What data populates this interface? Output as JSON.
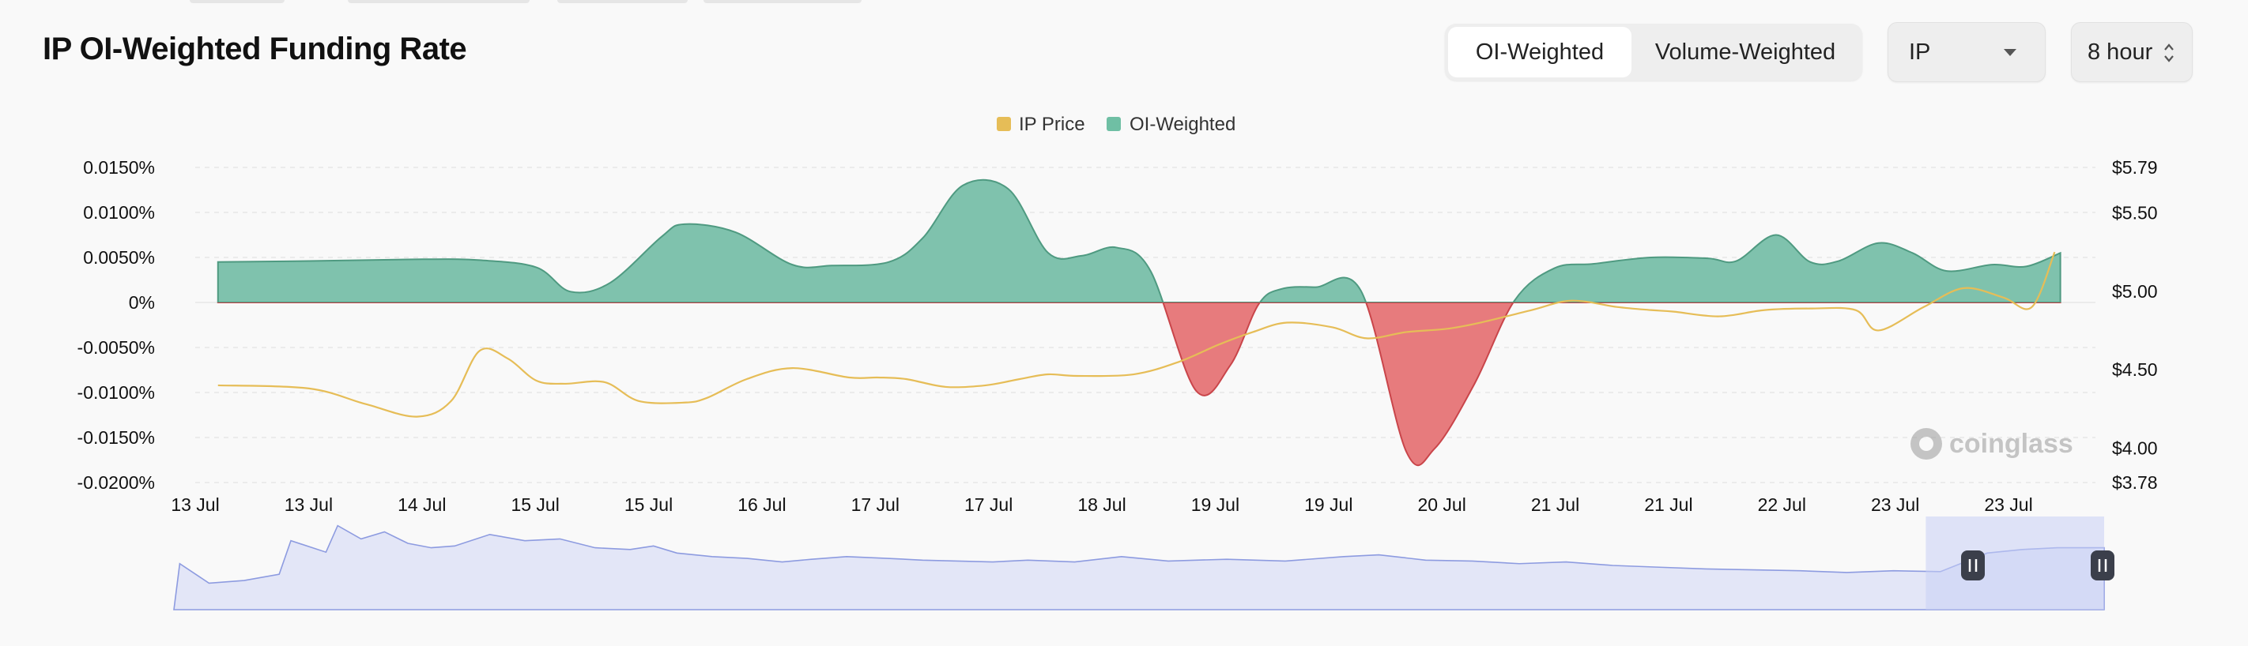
{
  "title": "IP OI-Weighted Funding Rate",
  "toggle": {
    "options": [
      "OI-Weighted",
      "Volume-Weighted"
    ],
    "selected": "OI-Weighted"
  },
  "coin_select": {
    "value": "IP",
    "icon": "chevron-down-icon"
  },
  "interval_select": {
    "value": "8 hour",
    "icon": "up-down-chevron-icon"
  },
  "watermark": "coinglass",
  "colors": {
    "price": "#e6bd57",
    "positive": "#6fbfa4",
    "negative": "#e37073",
    "navigator": "#8d9be0"
  },
  "chart_data": {
    "type": "area",
    "legend": [
      {
        "name": "IP Price",
        "color": "#e6bd57"
      },
      {
        "name": "OI-Weighted",
        "color": "#6fbfa4"
      }
    ],
    "legend_position": "top-center",
    "x_tick_labels": [
      "13 Jul",
      "13 Jul",
      "14 Jul",
      "15 Jul",
      "15 Jul",
      "16 Jul",
      "17 Jul",
      "17 Jul",
      "18 Jul",
      "19 Jul",
      "19 Jul",
      "20 Jul",
      "21 Jul",
      "21 Jul",
      "22 Jul",
      "23 Jul",
      "23 Jul"
    ],
    "x_range": [
      0,
      33
    ],
    "y_left": {
      "ticks": [
        "0.0150%",
        "0.0100%",
        "0.0050%",
        "0%",
        "-0.0050%",
        "-0.0100%",
        "-0.0150%",
        "-0.0200%"
      ],
      "range": [
        -0.02,
        0.015
      ]
    },
    "y_right": {
      "ticks": [
        "$5.79",
        "$5.50",
        "$5.00",
        "$4.50",
        "$4.00",
        "$3.78"
      ],
      "range": [
        3.78,
        5.79
      ]
    },
    "grid": "horizontal-dashed",
    "series": [
      {
        "name": "OI-Weighted",
        "unit": "%",
        "x": [
          0.4,
          2,
          4,
          5,
          6,
          6.6,
          7.3,
          8.2,
          8.6,
          9.5,
          10.5,
          11.2,
          12.2,
          12.8,
          13.5,
          14.3,
          15,
          15.6,
          16.2,
          16.8,
          17.6,
          18.2,
          18.7,
          19.1,
          19.7,
          20.5,
          21.3,
          21.8,
          22.5,
          23.2,
          23.9,
          24.6,
          25.6,
          26.6,
          27.1,
          27.8,
          28.4,
          28.9,
          29.6,
          30.2,
          30.8,
          31.6,
          32.2,
          32.8
        ],
        "values": [
          0.0045,
          0.0046,
          0.0048,
          0.0047,
          0.0039,
          0.0012,
          0.0022,
          0.0073,
          0.0087,
          0.0078,
          0.0042,
          0.0041,
          0.0045,
          0.0072,
          0.013,
          0.0126,
          0.0055,
          0.0052,
          0.0061,
          0.0035,
          -0.0098,
          -0.007,
          -0.0002,
          0.0015,
          0.0017,
          0.0013,
          -0.0166,
          -0.0162,
          -0.009,
          0.0002,
          0.0038,
          0.0043,
          0.005,
          0.0049,
          0.0046,
          0.0075,
          0.0045,
          0.0046,
          0.0066,
          0.0055,
          0.0035,
          0.0042,
          0.004,
          0.0055
        ]
      },
      {
        "name": "IP Price",
        "unit": "$",
        "x": [
          0.4,
          2,
          3,
          3.9,
          4.5,
          5,
          5.5,
          6,
          6.5,
          7.2,
          7.8,
          8.6,
          9,
          9.7,
          10.5,
          11.5,
          12,
          12.5,
          13.2,
          13.9,
          14.5,
          15,
          15.5,
          16.5,
          17.3,
          18,
          18.6,
          19.2,
          20,
          20.6,
          21.3,
          22,
          22.6,
          23.5,
          24.2,
          25,
          25.6,
          26,
          26.8,
          27.6,
          28.4,
          29.2,
          29.6,
          30.4,
          31.1,
          31.8,
          32.3,
          32.7
        ],
        "values": [
          4.4,
          4.38,
          4.28,
          4.2,
          4.3,
          4.62,
          4.57,
          4.43,
          4.41,
          4.42,
          4.3,
          4.29,
          4.32,
          4.44,
          4.51,
          4.45,
          4.45,
          4.44,
          4.39,
          4.4,
          4.44,
          4.47,
          4.46,
          4.47,
          4.55,
          4.66,
          4.74,
          4.8,
          4.77,
          4.7,
          4.74,
          4.76,
          4.8,
          4.88,
          4.94,
          4.9,
          4.88,
          4.87,
          4.84,
          4.88,
          4.89,
          4.88,
          4.75,
          4.9,
          5.02,
          4.96,
          4.9,
          5.25
        ]
      }
    ],
    "navigator": {
      "x": [
        0.0,
        0.1,
        0.6,
        1.2,
        1.8,
        2.0,
        2.6,
        2.8,
        3.2,
        3.6,
        4.0,
        4.4,
        4.8,
        5.4,
        6.0,
        6.6,
        7.2,
        7.8,
        8.2,
        8.6,
        9.2,
        9.8,
        10.4,
        10.9,
        11.5,
        12.2,
        12.8,
        13.4,
        14.0,
        14.6,
        15.4,
        16.2,
        17.0,
        18.0,
        19.0,
        20.0,
        20.6,
        21.4,
        22.2,
        23.0,
        23.8,
        24.6,
        25.4,
        26.2,
        27.0,
        27.8,
        28.6,
        29.4,
        30.2,
        31.0,
        31.6,
        32.2,
        33.0
      ],
      "values": [
        0.0,
        0.52,
        0.3,
        0.33,
        0.4,
        0.78,
        0.65,
        0.95,
        0.8,
        0.88,
        0.75,
        0.7,
        0.72,
        0.85,
        0.78,
        0.8,
        0.7,
        0.68,
        0.72,
        0.64,
        0.6,
        0.58,
        0.54,
        0.57,
        0.6,
        0.58,
        0.56,
        0.55,
        0.54,
        0.56,
        0.54,
        0.6,
        0.55,
        0.57,
        0.55,
        0.6,
        0.62,
        0.56,
        0.55,
        0.52,
        0.54,
        0.5,
        0.48,
        0.46,
        0.45,
        0.44,
        0.42,
        0.44,
        0.43,
        0.64,
        0.68,
        0.7,
        0.7
      ],
      "selected_range": [
        29.6,
        33.0
      ],
      "handle_icon": "pause-grip-icon"
    }
  }
}
